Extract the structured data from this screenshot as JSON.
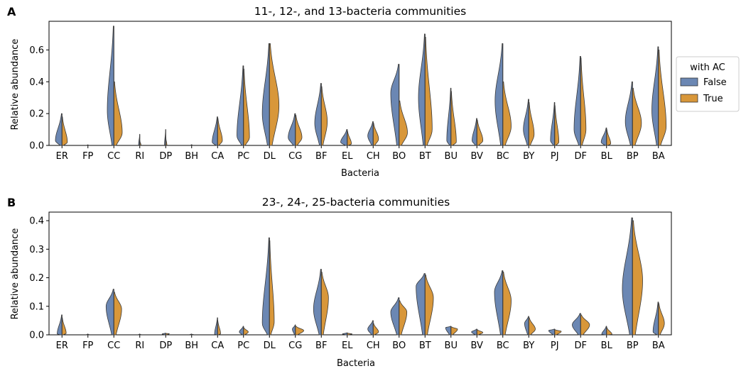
{
  "legend": {
    "title": "with AC",
    "entries": [
      {
        "label": "False",
        "color": "#6b87b3"
      },
      {
        "label": "True",
        "color": "#d8973a"
      }
    ],
    "placement": "right"
  },
  "chart_data": [
    {
      "type": "violin",
      "panel_label": "A",
      "title": "11-, 12-, and 13-bacteria communities",
      "xlabel": "Bacteria",
      "ylabel": "Relative abundance",
      "ylim": [
        0,
        0.78
      ],
      "yticks": [
        0.0,
        0.2,
        0.4,
        0.6
      ],
      "categories": [
        "ER",
        "FP",
        "CC",
        "RI",
        "DP",
        "BH",
        "CA",
        "PC",
        "DL",
        "CG",
        "BF",
        "EL",
        "CH",
        "BO",
        "BT",
        "BU",
        "BV",
        "BC",
        "BY",
        "PJ",
        "DF",
        "BL",
        "BP",
        "BA"
      ],
      "series": [
        {
          "name": "False",
          "color": "#6b87b3",
          "max": [
            0.2,
            0.004,
            0.75,
            0.07,
            0.1,
            0.005,
            0.18,
            0.5,
            0.64,
            0.2,
            0.39,
            0.1,
            0.15,
            0.51,
            0.7,
            0.36,
            0.17,
            0.64,
            0.29,
            0.27,
            0.56,
            0.11,
            0.4,
            0.62
          ],
          "mode": [
            0.03,
            0.001,
            0.22,
            0.004,
            0.004,
            0.001,
            0.02,
            0.06,
            0.2,
            0.05,
            0.14,
            0.02,
            0.06,
            0.33,
            0.3,
            0.03,
            0.03,
            0.28,
            0.1,
            0.03,
            0.1,
            0.02,
            0.15,
            0.22
          ],
          "width": [
            0.55,
            0.1,
            0.55,
            0.1,
            0.1,
            0.1,
            0.45,
            0.55,
            0.6,
            0.6,
            0.55,
            0.55,
            0.45,
            0.7,
            0.55,
            0.35,
            0.4,
            0.65,
            0.45,
            0.35,
            0.55,
            0.45,
            0.6,
            0.55
          ]
        },
        {
          "name": "True",
          "color": "#d8973a",
          "max": [
            0.18,
            0.003,
            0.4,
            0.03,
            0.05,
            0.004,
            0.17,
            0.48,
            0.64,
            0.19,
            0.37,
            0.09,
            0.14,
            0.28,
            0.68,
            0.34,
            0.16,
            0.4,
            0.27,
            0.25,
            0.55,
            0.1,
            0.36,
            0.6
          ],
          "mode": [
            0.02,
            0.001,
            0.08,
            0.002,
            0.002,
            0.001,
            0.03,
            0.05,
            0.25,
            0.05,
            0.15,
            0.01,
            0.04,
            0.08,
            0.1,
            0.02,
            0.03,
            0.12,
            0.07,
            0.02,
            0.1,
            0.01,
            0.14,
            0.12
          ],
          "width": [
            0.45,
            0.1,
            0.7,
            0.1,
            0.1,
            0.1,
            0.4,
            0.5,
            0.8,
            0.55,
            0.5,
            0.35,
            0.45,
            0.7,
            0.6,
            0.45,
            0.5,
            0.7,
            0.45,
            0.35,
            0.45,
            0.35,
            0.75,
            0.65
          ]
        }
      ]
    },
    {
      "type": "violin",
      "panel_label": "B",
      "title": "23-, 24-, 25-bacteria communities",
      "xlabel": "Bacteria",
      "ylabel": "Relative abundance",
      "ylim": [
        0,
        0.43
      ],
      "yticks": [
        0.0,
        0.1,
        0.2,
        0.3,
        0.4
      ],
      "categories": [
        "ER",
        "FP",
        "CC",
        "RI",
        "DP",
        "BH",
        "CA",
        "PC",
        "DL",
        "CG",
        "BF",
        "EL",
        "CH",
        "BO",
        "BT",
        "BU",
        "BV",
        "BC",
        "BY",
        "PJ",
        "DF",
        "BL",
        "BP",
        "BA"
      ],
      "series": [
        {
          "name": "False",
          "color": "#6b87b3",
          "max": [
            0.07,
            0.003,
            0.16,
            0.003,
            0.006,
            0.003,
            0.06,
            0.03,
            0.34,
            0.035,
            0.23,
            0.007,
            0.05,
            0.13,
            0.215,
            0.03,
            0.02,
            0.225,
            0.065,
            0.02,
            0.075,
            0.03,
            0.41,
            0.115
          ],
          "mode": [
            0.003,
            0.001,
            0.1,
            0.001,
            0.003,
            0.001,
            0.002,
            0.01,
            0.04,
            0.02,
            0.09,
            0.003,
            0.02,
            0.08,
            0.17,
            0.025,
            0.01,
            0.15,
            0.04,
            0.015,
            0.035,
            0.002,
            0.16,
            0.01
          ],
          "width": [
            0.4,
            0.1,
            0.65,
            0.1,
            0.3,
            0.15,
            0.25,
            0.35,
            0.6,
            0.25,
            0.65,
            0.4,
            0.45,
            0.7,
            0.75,
            0.45,
            0.45,
            0.7,
            0.35,
            0.5,
            0.7,
            0.4,
            0.85,
            0.45
          ]
        },
        {
          "name": "True",
          "color": "#d8973a",
          "max": [
            0.06,
            0.002,
            0.15,
            0.002,
            0.005,
            0.002,
            0.05,
            0.025,
            0.33,
            0.03,
            0.22,
            0.006,
            0.04,
            0.12,
            0.21,
            0.028,
            0.018,
            0.22,
            0.06,
            0.018,
            0.07,
            0.025,
            0.4,
            0.11
          ],
          "mode": [
            0.005,
            0.001,
            0.09,
            0.001,
            0.004,
            0.001,
            0.004,
            0.01,
            0.045,
            0.015,
            0.13,
            0.003,
            0.01,
            0.08,
            0.13,
            0.02,
            0.008,
            0.12,
            0.02,
            0.012,
            0.035,
            0.002,
            0.19,
            0.04
          ],
          "width": [
            0.35,
            0.1,
            0.65,
            0.1,
            0.3,
            0.15,
            0.25,
            0.4,
            0.4,
            0.7,
            0.6,
            0.4,
            0.45,
            0.65,
            0.7,
            0.55,
            0.5,
            0.7,
            0.55,
            0.55,
            0.75,
            0.45,
            0.85,
            0.5
          ]
        }
      ]
    }
  ]
}
